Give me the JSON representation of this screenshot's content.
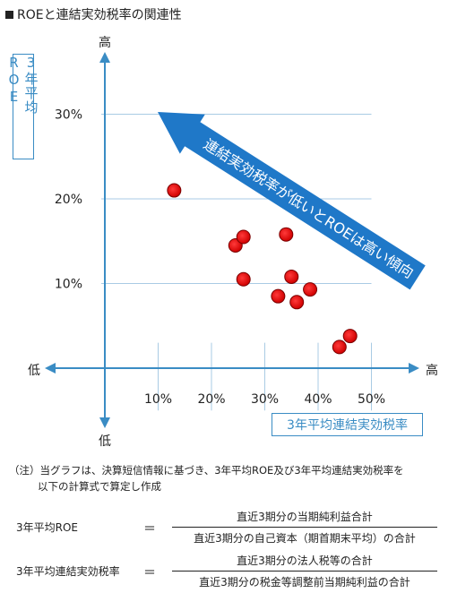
{
  "title": "ROEと連結実効税率の関連性",
  "chart_data": {
    "type": "scatter",
    "title": "ROEと連結実効税率の関連性",
    "xlabel": "3年平均連結実効税率",
    "ylabel": "3年平均ROE",
    "xlim": [
      0,
      56
    ],
    "ylim": [
      0,
      41
    ],
    "x_ticks": [
      "10%",
      "20%",
      "30%",
      "40%",
      "50%"
    ],
    "y_ticks": [
      "10%",
      "20%",
      "30%"
    ],
    "points": [
      {
        "x": 13,
        "y": 21
      },
      {
        "x": 24.5,
        "y": 14.5
      },
      {
        "x": 26,
        "y": 15.5
      },
      {
        "x": 26,
        "y": 10.5
      },
      {
        "x": 34,
        "y": 15.8
      },
      {
        "x": 35,
        "y": 10.8
      },
      {
        "x": 32.5,
        "y": 8.5
      },
      {
        "x": 36,
        "y": 7.8
      },
      {
        "x": 38.5,
        "y": 9.3
      },
      {
        "x": 44,
        "y": 2.5
      },
      {
        "x": 46,
        "y": 3.8
      }
    ],
    "axis_labels": {
      "y_high": "高",
      "y_low": "低",
      "x_low": "低",
      "x_high": "高"
    },
    "annotation": "連結実効税率が低いとROEは高い傾向",
    "colors": {
      "point": "#e01010",
      "arrow": "#1f78c8",
      "axis": "#3a8cc4",
      "box": "#3a8cc4"
    }
  },
  "note": {
    "line1": "（注）当グラフは、決算短信情報に基づき、3年平均ROE及び3年平均連結実効税率を",
    "line2": "以下の計算式で算定し作成"
  },
  "formulas": [
    {
      "lhs": "3年平均ROE",
      "eq": "＝",
      "num": "直近3期分の当期純利益合計",
      "den": "直近3期分の自己資本（期首期末平均）の合計"
    },
    {
      "lhs": "3年平均連結実効税率",
      "eq": "＝",
      "num": "直近3期分の法人税等の合計",
      "den": "直近3期分の税金等調整前当期純利益の合計"
    }
  ]
}
